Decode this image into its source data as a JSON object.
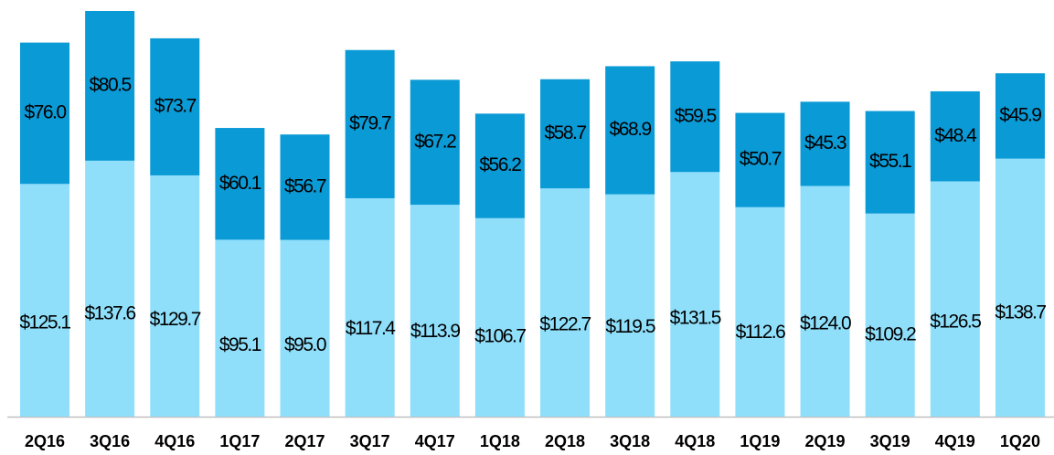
{
  "chart_data": {
    "type": "stacked-bar",
    "categories": [
      "2Q16",
      "3Q16",
      "4Q16",
      "1Q17",
      "2Q17",
      "3Q17",
      "4Q17",
      "1Q18",
      "2Q18",
      "3Q18",
      "4Q18",
      "1Q19",
      "2Q19",
      "3Q19",
      "4Q19",
      "1Q20"
    ],
    "series": [
      {
        "color": "#8fdffb",
        "values": [
          125.1,
          137.6,
          129.7,
          95.1,
          95.0,
          117.4,
          113.9,
          106.7,
          122.7,
          119.5,
          131.5,
          112.6,
          124.0,
          109.2,
          126.5,
          138.7
        ],
        "value_labels": [
          "$125.1",
          "$137.6",
          "$129.7",
          "$95.1",
          "$95.0",
          "$117.4",
          "$113.9",
          "$106.7",
          "$122.7",
          "$119.5",
          "$131.5",
          "$112.6",
          "$124.0",
          "$109.2",
          "$126.5",
          "$138.7"
        ]
      },
      {
        "color": "#0a9ad6",
        "values": [
          76.0,
          80.5,
          73.7,
          60.1,
          56.7,
          79.7,
          67.2,
          56.2,
          58.7,
          68.9,
          59.5,
          50.7,
          45.3,
          55.1,
          48.4,
          45.9
        ],
        "value_labels": [
          "$76.0",
          "$80.5",
          "$73.7",
          "$60.1",
          "$56.7",
          "$79.7",
          "$67.2",
          "$56.2",
          "$58.7",
          "$68.9",
          "$59.5",
          "$50.7",
          "$45.3",
          "$55.1",
          "$48.4",
          "$45.9"
        ]
      }
    ]
  }
}
